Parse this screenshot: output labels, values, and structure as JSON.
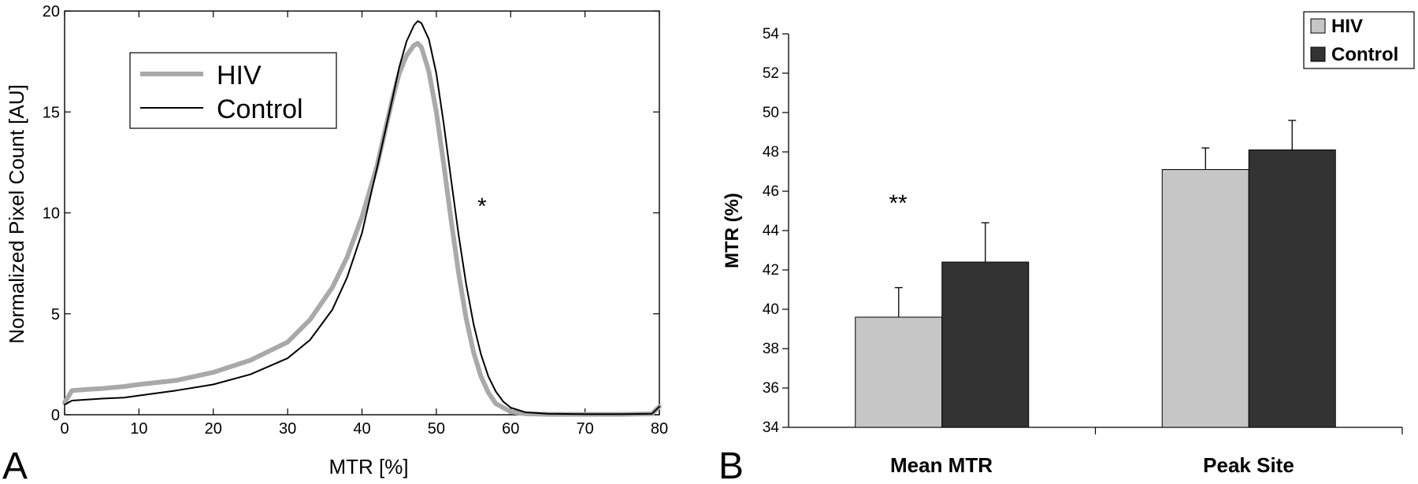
{
  "chart_data": [
    {
      "panel": "A",
      "type": "line",
      "xlabel": "MTR [%]",
      "ylabel": "Normalized Pixel Count [AU]",
      "xlim": [
        0,
        80
      ],
      "ylim": [
        0,
        20
      ],
      "xticks": [
        0,
        10,
        20,
        30,
        40,
        50,
        60,
        70,
        80
      ],
      "yticks": [
        0,
        5,
        10,
        15,
        20
      ],
      "grid": false,
      "legend": "top-left",
      "annotation": "*",
      "series": [
        {
          "name": "HIV",
          "color": "#a9a9a9",
          "x": [
            0,
            1,
            3,
            5,
            8,
            10,
            15,
            20,
            25,
            30,
            33,
            36,
            38,
            40,
            42,
            43,
            44,
            45,
            46,
            47,
            47.5,
            48,
            49,
            50,
            51,
            52,
            53,
            54,
            55,
            56,
            57,
            58,
            60,
            62,
            65,
            70,
            75,
            79,
            80
          ],
          "y": [
            0.6,
            1.2,
            1.25,
            1.3,
            1.4,
            1.5,
            1.7,
            2.1,
            2.7,
            3.6,
            4.7,
            6.3,
            7.8,
            9.8,
            12.3,
            13.9,
            15.5,
            16.9,
            17.8,
            18.3,
            18.4,
            18.2,
            17.0,
            15.0,
            12.4,
            9.6,
            7.0,
            4.8,
            3.1,
            1.9,
            1.1,
            0.55,
            0.15,
            0.05,
            0.02,
            0.02,
            0.02,
            0.05,
            0.4
          ]
        },
        {
          "name": "Control",
          "color": "#000000",
          "x": [
            0,
            1,
            3,
            5,
            8,
            10,
            15,
            20,
            25,
            30,
            33,
            36,
            38,
            40,
            42,
            44,
            45,
            46,
            47,
            47.5,
            48,
            49,
            50,
            51,
            52,
            53,
            54,
            55,
            56,
            57,
            58,
            59,
            60,
            62,
            65,
            70,
            75,
            79,
            80
          ],
          "y": [
            0.5,
            0.7,
            0.75,
            0.8,
            0.85,
            0.95,
            1.2,
            1.5,
            2.0,
            2.8,
            3.7,
            5.2,
            6.8,
            9.0,
            12.2,
            15.5,
            17.2,
            18.5,
            19.3,
            19.5,
            19.4,
            18.6,
            16.9,
            14.4,
            11.6,
            8.9,
            6.5,
            4.5,
            3.0,
            1.9,
            1.15,
            0.65,
            0.35,
            0.12,
            0.05,
            0.03,
            0.03,
            0.05,
            0.4
          ]
        }
      ]
    },
    {
      "panel": "B",
      "type": "bar",
      "ylabel": "MTR (%)",
      "ylim": [
        34,
        54
      ],
      "yticks": [
        34,
        36,
        38,
        40,
        42,
        44,
        46,
        48,
        50,
        52,
        54
      ],
      "categories": [
        "Mean MTR",
        "Peak Site"
      ],
      "legend": "top-right",
      "series": [
        {
          "name": "HIV",
          "color": "#c6c6c6",
          "values": [
            39.6,
            47.1
          ],
          "errors": [
            1.5,
            1.1
          ]
        },
        {
          "name": "Control",
          "color": "#333333",
          "values": [
            42.4,
            48.1
          ],
          "errors": [
            2.0,
            1.5
          ]
        }
      ],
      "annotation": {
        "text": "**",
        "category": "Mean MTR"
      }
    }
  ]
}
